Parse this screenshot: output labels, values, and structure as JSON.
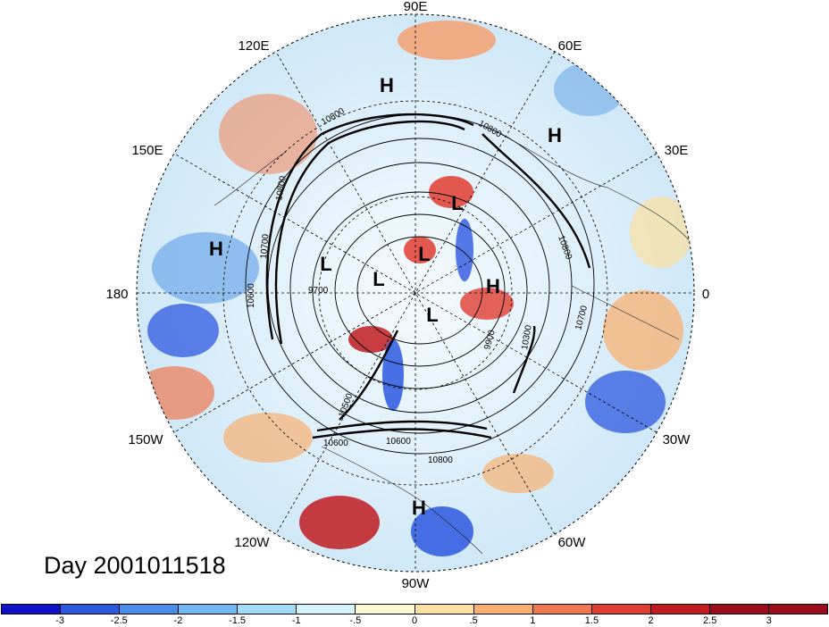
{
  "title": "Day 2001011518",
  "longitude_labels": [
    "90E",
    "60E",
    "30E",
    "0",
    "30W",
    "60W",
    "90W",
    "120W",
    "150W",
    "180",
    "150E",
    "120E"
  ],
  "pressure_centers": [
    "H",
    "H",
    "L",
    "L",
    "L",
    "L",
    "H",
    "L",
    "H",
    "H"
  ],
  "contour_labels": [
    "10800",
    "10800",
    "10800",
    "10800",
    "10700",
    "10700",
    "10600",
    "10500",
    "10300",
    "9900",
    "9700",
    "10600",
    "10600",
    "10800"
  ],
  "colorbar": {
    "colors": [
      "#1010c8",
      "#2c58e0",
      "#4a8cec",
      "#70b8f4",
      "#a0dcf8",
      "#d4f4fa",
      "#fcf8d0",
      "#fce0a0",
      "#f8b070",
      "#f07850",
      "#e03c30",
      "#c01c20",
      "#9c0c18"
    ],
    "tick_labels": [
      "-3",
      "-2.5",
      "-2",
      "-1.5",
      "-1",
      "-.5",
      "0",
      ".5",
      "1",
      "1.5",
      "2",
      "2.5",
      "3"
    ]
  }
}
